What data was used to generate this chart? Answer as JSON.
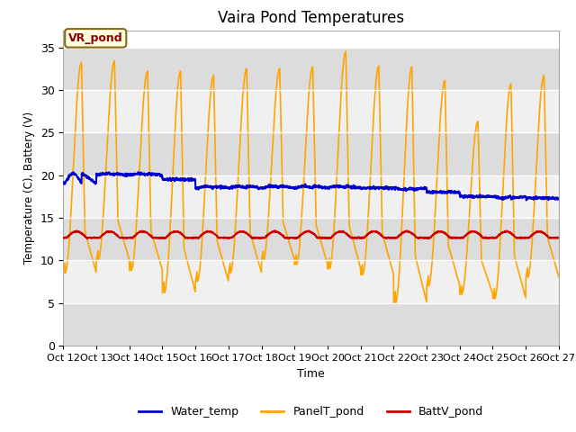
{
  "title": "Vaira Pond Temperatures",
  "xlabel": "Time",
  "ylabel": "Temperature (C), Battery (V)",
  "ylim": [
    0,
    37
  ],
  "yticks": [
    0,
    5,
    10,
    15,
    20,
    25,
    30,
    35
  ],
  "x_labels": [
    "Oct 12",
    "Oct 13",
    "Oct 14",
    "Oct 15",
    "Oct 16",
    "Oct 17",
    "Oct 18",
    "Oct 19",
    "Oct 20",
    "Oct 21",
    "Oct 22",
    "Oct 23",
    "Oct 24",
    "Oct 25",
    "Oct 26",
    "Oct 27"
  ],
  "annotation_text": "VR_pond",
  "water_temp_color": "#0000CC",
  "panel_temp_color": "#FFA500",
  "batt_color": "#CC0000",
  "bg_bands": [
    [
      0,
      5,
      "#DCDCDC"
    ],
    [
      5,
      10,
      "#F0F0F0"
    ],
    [
      10,
      15,
      "#DCDCDC"
    ],
    [
      15,
      20,
      "#F0F0F0"
    ],
    [
      20,
      25,
      "#DCDCDC"
    ],
    [
      25,
      30,
      "#F0F0F0"
    ],
    [
      30,
      35,
      "#DCDCDC"
    ]
  ],
  "outer_bg": "#E8E8E8",
  "num_days": 15,
  "legend_entries": [
    "Water_temp",
    "PanelT_pond",
    "BattV_pond"
  ],
  "panel_mins": [
    8.5,
    10.0,
    8.8,
    6.2,
    7.5,
    8.5,
    10.0,
    9.5,
    9.0,
    8.3,
    5.0,
    7.0,
    6.0,
    5.5,
    8.0
  ],
  "panel_maxs": [
    33.2,
    33.4,
    32.2,
    32.2,
    31.7,
    32.5,
    32.5,
    32.7,
    34.5,
    32.8,
    32.7,
    31.1,
    26.3,
    30.7,
    31.7
  ],
  "water_starts": [
    19.0,
    20.0,
    20.0,
    19.5,
    18.5,
    18.5,
    18.5,
    18.5,
    18.5,
    18.5,
    18.5,
    18.0,
    17.5,
    17.5,
    17.3
  ],
  "water_peaks": [
    20.2,
    20.2,
    20.2,
    19.5,
    18.7,
    18.7,
    18.7,
    18.7,
    18.7,
    18.5,
    18.3,
    18.0,
    17.5,
    17.3,
    17.3
  ],
  "batt_base": 12.65,
  "batt_peak": 13.9
}
